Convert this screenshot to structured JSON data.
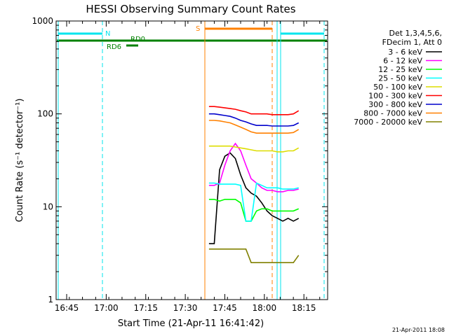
{
  "chart_data": {
    "type": "line",
    "title": "HESSI Observing Summary Count Rates",
    "xlabel": "Start Time (21-Apr-11 16:41:42)",
    "ylabel": "Count Rate (s⁻¹ detector⁻¹)",
    "yscale": "log",
    "ylim": [
      1,
      1000
    ],
    "xlim_minutes_after_1641": [
      0,
      103
    ],
    "x_ticks": [
      "16:45",
      "17:00",
      "17:15",
      "17:30",
      "17:45",
      "18:00",
      "18:15"
    ],
    "y_ticks": [
      "1",
      "10",
      "100",
      "1000"
    ],
    "footer": "21-Apr-2011 18:08",
    "legend": {
      "placement": "top-right",
      "header": [
        "Det 1,3,4,5,6,",
        "FDecim 1, Att 0"
      ]
    },
    "annotations": {
      "saa_label": "N",
      "rd_labels": [
        "RD0",
        "RD6"
      ],
      "attenuator_label": "S"
    },
    "series": [
      {
        "name": "3 - 6 keV",
        "color": "#000000",
        "x": [
          58,
          60,
          62,
          64,
          66,
          68,
          70,
          72,
          74,
          76,
          78,
          80,
          82,
          84,
          86,
          88,
          90,
          92
        ],
        "y": [
          4,
          4,
          25,
          35,
          38,
          33,
          22,
          16,
          14,
          13,
          11,
          9,
          8,
          7.5,
          7,
          7.5,
          7,
          7.5
        ]
      },
      {
        "name": "6 - 12 keV",
        "color": "#ff00ff",
        "x": [
          58,
          60,
          62,
          64,
          66,
          68,
          70,
          72,
          74,
          76,
          78,
          80,
          82,
          84,
          86,
          88,
          90,
          92
        ],
        "y": [
          17,
          17,
          18,
          28,
          40,
          48,
          40,
          28,
          20,
          18,
          16,
          15,
          15,
          14.5,
          14.5,
          15,
          15,
          15.5
        ]
      },
      {
        "name": "12 - 25 keV",
        "color": "#00ff00",
        "x": [
          58,
          60,
          62,
          64,
          66,
          68,
          70,
          72,
          74,
          76,
          78,
          80,
          82,
          84,
          86,
          88,
          90,
          92
        ],
        "y": [
          12,
          12,
          11.5,
          12,
          12,
          12,
          11,
          7,
          7,
          9,
          9.5,
          9.5,
          9,
          9,
          9,
          9,
          9,
          9.5
        ]
      },
      {
        "name": "25 - 50 keV",
        "color": "#00ffff",
        "x": [
          58,
          60,
          62,
          64,
          66,
          68,
          70,
          72,
          74,
          76,
          78,
          80,
          82,
          84,
          86,
          88,
          90,
          92
        ],
        "y": [
          18,
          18,
          17.5,
          17.5,
          17.5,
          17.5,
          17,
          7,
          7,
          18,
          17,
          16,
          16,
          16,
          15.5,
          15.5,
          15.5,
          16
        ]
      },
      {
        "name": "50 - 100 keV",
        "color": "#dddd00",
        "x": [
          58,
          60,
          62,
          64,
          66,
          68,
          70,
          72,
          74,
          76,
          78,
          80,
          82,
          84,
          86,
          88,
          90,
          92
        ],
        "y": [
          45,
          45,
          45,
          45,
          45,
          44,
          43,
          42,
          41,
          40,
          40,
          40,
          40,
          39,
          39,
          40,
          40,
          43
        ]
      },
      {
        "name": "100 - 300 keV",
        "color": "#ff0000",
        "x": [
          58,
          60,
          62,
          64,
          66,
          68,
          70,
          72,
          74,
          76,
          78,
          80,
          82,
          84,
          86,
          88,
          90,
          92
        ],
        "y": [
          120,
          120,
          118,
          116,
          114,
          112,
          108,
          105,
          100,
          100,
          100,
          100,
          98,
          98,
          98,
          98,
          100,
          108
        ]
      },
      {
        "name": "300 - 800 keV",
        "color": "#0000cc",
        "x": [
          58,
          60,
          62,
          64,
          66,
          68,
          70,
          72,
          74,
          76,
          78,
          80,
          82,
          84,
          86,
          88,
          90,
          92
        ],
        "y": [
          100,
          100,
          98,
          96,
          94,
          90,
          85,
          82,
          78,
          75,
          75,
          75,
          74,
          74,
          74,
          74,
          75,
          80
        ]
      },
      {
        "name": "800 - 7000 keV",
        "color": "#ff8000",
        "x": [
          58,
          60,
          62,
          64,
          66,
          68,
          70,
          72,
          74,
          76,
          78,
          80,
          82,
          84,
          86,
          88,
          90,
          92
        ],
        "y": [
          85,
          85,
          84,
          82,
          80,
          76,
          72,
          68,
          64,
          62,
          62,
          62,
          62,
          62,
          62,
          62,
          63,
          68
        ]
      },
      {
        "name": "7000 - 20000 keV",
        "color": "#808000",
        "x": [
          58,
          60,
          62,
          64,
          66,
          68,
          70,
          72,
          74,
          76,
          78,
          80,
          82,
          84,
          86,
          88,
          90,
          92
        ],
        "y": [
          3.5,
          3.5,
          3.5,
          3.5,
          3.5,
          3.5,
          3.5,
          3.5,
          2.5,
          2.5,
          2.5,
          2.5,
          2.5,
          2.5,
          2.5,
          2.5,
          2.5,
          3
        ]
      }
    ]
  }
}
